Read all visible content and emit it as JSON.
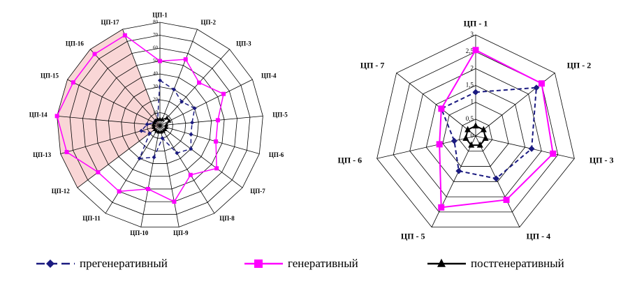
{
  "chart_data": [
    {
      "type": "radar",
      "categories": [
        "ЦП-1",
        "ЦП-2",
        "ЦП-3",
        "ЦП-4",
        "ЦП-5",
        "ЦП-6",
        "ЦП-7",
        "ЦП-8",
        "ЦП-9",
        "ЦП-10",
        "ЦП-11",
        "ЦП-12",
        "ЦП-13",
        "ЦП-14",
        "ЦП-15",
        "ЦП-16",
        "ЦП-17"
      ],
      "ylim": [
        0,
        80
      ],
      "yticks": [
        0,
        10,
        20,
        30,
        40,
        50,
        60,
        70,
        80
      ],
      "series": [
        {
          "name": "прегенеративный",
          "color": "#1a1a80",
          "values": [
            35,
            30,
            25,
            30,
            25,
            25,
            30,
            25,
            10,
            25,
            30,
            10,
            15,
            10,
            5,
            5,
            5
          ]
        },
        {
          "name": "генеративный",
          "color": "#ff00ff",
          "values": [
            50,
            55,
            45,
            55,
            45,
            45,
            55,
            45,
            60,
            50,
            60,
            60,
            75,
            80,
            75,
            75,
            75
          ]
        },
        {
          "name": "постгенеративный",
          "color": "#000000",
          "values": [
            5,
            5,
            8,
            8,
            5,
            5,
            5,
            5,
            5,
            5,
            5,
            5,
            5,
            5,
            5,
            5,
            5
          ]
        }
      ]
    },
    {
      "type": "radar",
      "categories": [
        "ЦП - 1",
        "ЦП - 2",
        "ЦП - 3",
        "ЦП - 4",
        "ЦП - 5",
        "ЦП - 6",
        "ЦП - 7"
      ],
      "ylim": [
        0,
        3
      ],
      "yticks": [
        0,
        {
          "value": 0.5,
          "label": "0,5"
        },
        1,
        {
          "value": 1.5,
          "label": "1,5"
        },
        2,
        {
          "value": 2.5,
          "label": "2,5"
        },
        3
      ],
      "series": [
        {
          "color": "#1a1a80",
          "values": [
            1.3,
            2.3,
            1.7,
            1.4,
            1.15,
            0.65,
            1.3
          ]
        },
        {
          "color": "#ff00ff",
          "values": [
            2.55,
            2.5,
            2.35,
            2.1,
            2.35,
            1.1,
            1.3
          ]
        },
        {
          "color": "#000000",
          "values": [
            0.3,
            0.3,
            0.3,
            0.3,
            0.3,
            0.3,
            0.3
          ]
        }
      ]
    }
  ]
}
